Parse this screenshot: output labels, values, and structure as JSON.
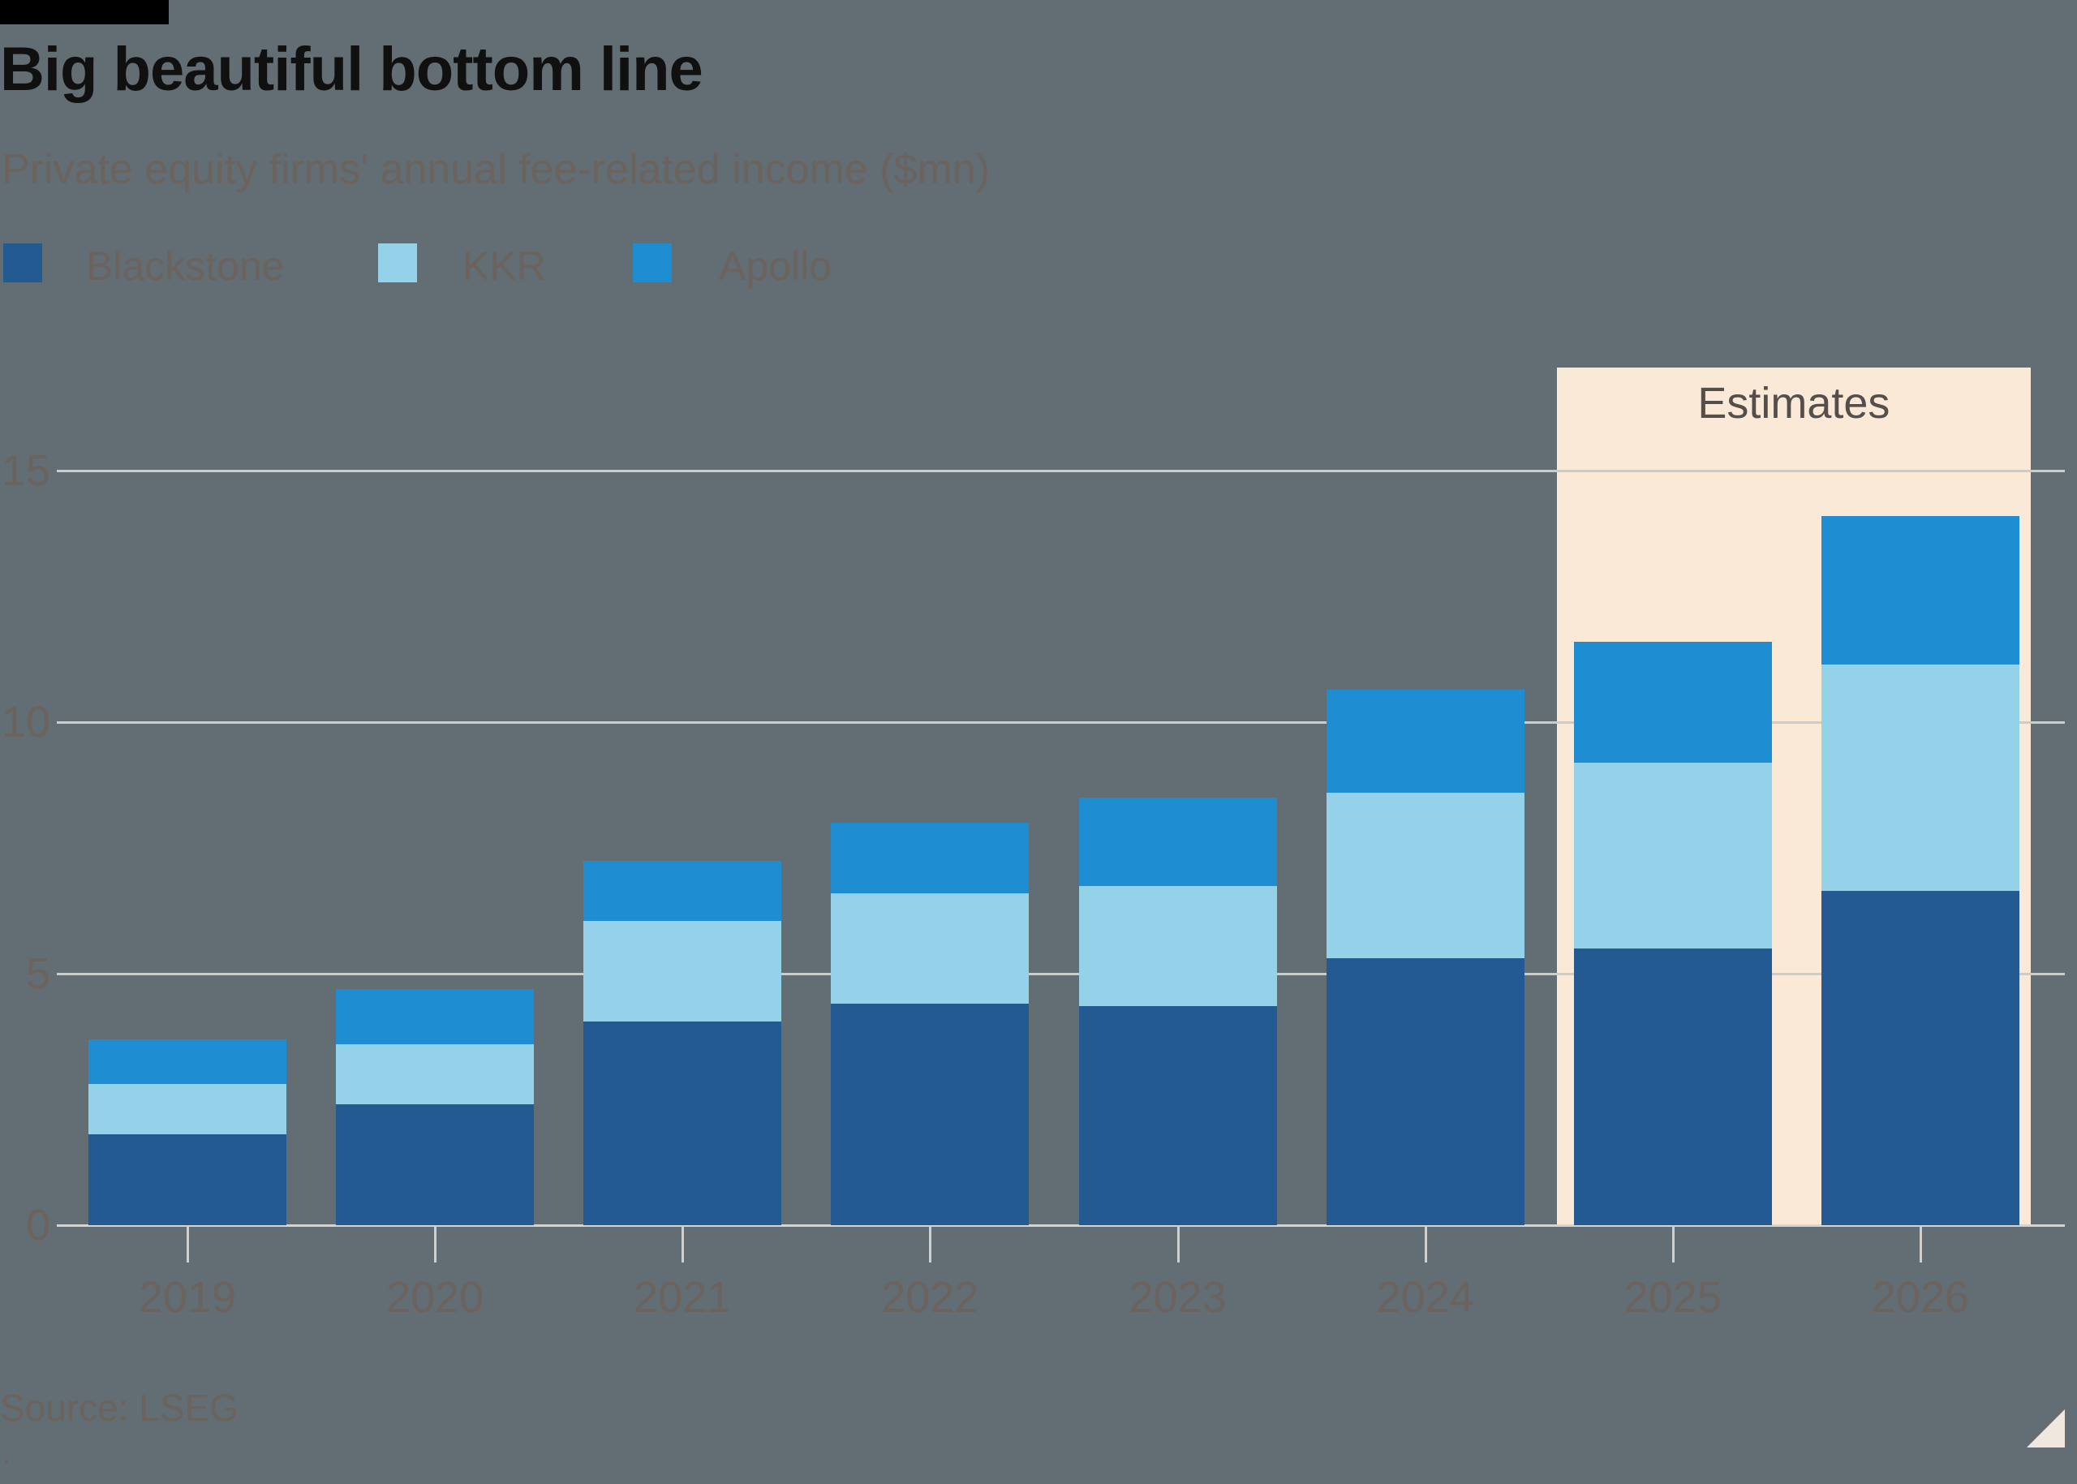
{
  "footer": {
    "source": "Source: LSEG",
    "footnote_mark": "."
  },
  "chart_data": {
    "type": "bar",
    "stacked": true,
    "title": "Big beautiful bottom line",
    "subtitle": "Private equity firms' annual fee-related income ($mn)",
    "xlabel": "",
    "ylabel": "",
    "categories": [
      "2019",
      "2020",
      "2021",
      "2022",
      "2023",
      "2024",
      "2025",
      "2026"
    ],
    "series": [
      {
        "name": "Blackstone",
        "color": "#235a91",
        "values": [
          1.8,
          2.4,
          4.05,
          4.4,
          4.35,
          5.3,
          5.5,
          6.65
        ]
      },
      {
        "name": "KKR",
        "color": "#93d2e8",
        "values": [
          1.0,
          1.2,
          2.0,
          2.2,
          2.4,
          3.3,
          3.7,
          4.5
        ]
      },
      {
        "name": "Apollo",
        "color": "#1f8dd2",
        "values": [
          0.9,
          1.1,
          1.2,
          1.4,
          1.75,
          2.05,
          2.4,
          2.95
        ]
      }
    ],
    "yticks": [
      0,
      5,
      10,
      15
    ],
    "ylim": [
      0,
      17.05
    ],
    "grid": true,
    "legend_position": "top-left",
    "estimates_label": "Estimates",
    "estimate_categories": [
      "2025",
      "2026"
    ],
    "estimate_fill": "#fbe9d8",
    "background_color": "#636d74",
    "grid_color": "#cbcdca",
    "text_color": "#6b635d"
  }
}
